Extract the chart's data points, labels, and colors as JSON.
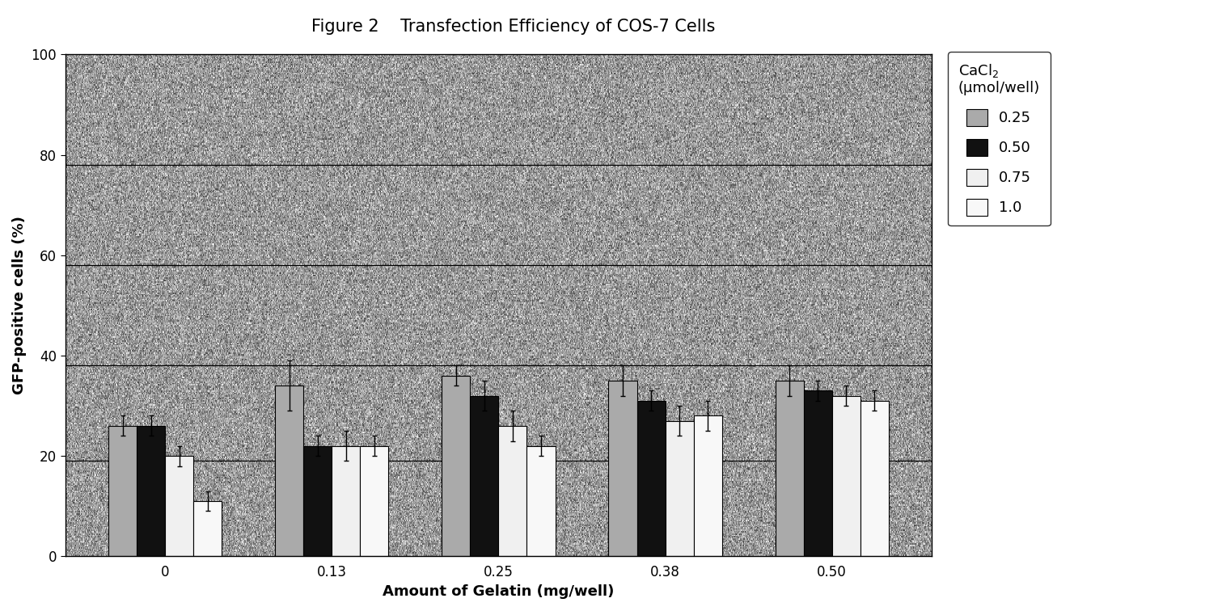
{
  "title": "Figure 2    Transfection Efficiency of COS-7 Cells",
  "xlabel": "Amount of Gelatin (mg/well)",
  "ylabel": "GFP-positive cells (%)",
  "legend_title_line1": "CaCl",
  "legend_title_line2": "(μmol/well)",
  "legend_labels": [
    "0.25",
    "0.50",
    "0.75",
    "1.0"
  ],
  "categories": [
    "0",
    "0.13",
    "0.25",
    "0.38",
    "0.50"
  ],
  "bar_width": 0.17,
  "ylim": [
    0,
    100
  ],
  "yticks": [
    0,
    20,
    40,
    60,
    80,
    100
  ],
  "values": [
    [
      26,
      26,
      20,
      11
    ],
    [
      34,
      22,
      22,
      22
    ],
    [
      36,
      32,
      26,
      22
    ],
    [
      35,
      31,
      27,
      28
    ],
    [
      35,
      33,
      32,
      31
    ]
  ],
  "errors": [
    [
      2,
      2,
      2,
      2
    ],
    [
      5,
      2,
      3,
      2
    ],
    [
      2,
      3,
      3,
      2
    ],
    [
      3,
      2,
      3,
      3
    ],
    [
      3,
      2,
      2,
      2
    ]
  ],
  "hlines": [
    19,
    38,
    58,
    78
  ],
  "title_fontsize": 15,
  "label_fontsize": 13,
  "tick_fontsize": 12,
  "bar_face_colors": [
    "#aaaaaa",
    "#111111",
    "#f0f0f0",
    "#f8f8f8"
  ],
  "noise_mean": 0.6,
  "noise_std": 0.15
}
